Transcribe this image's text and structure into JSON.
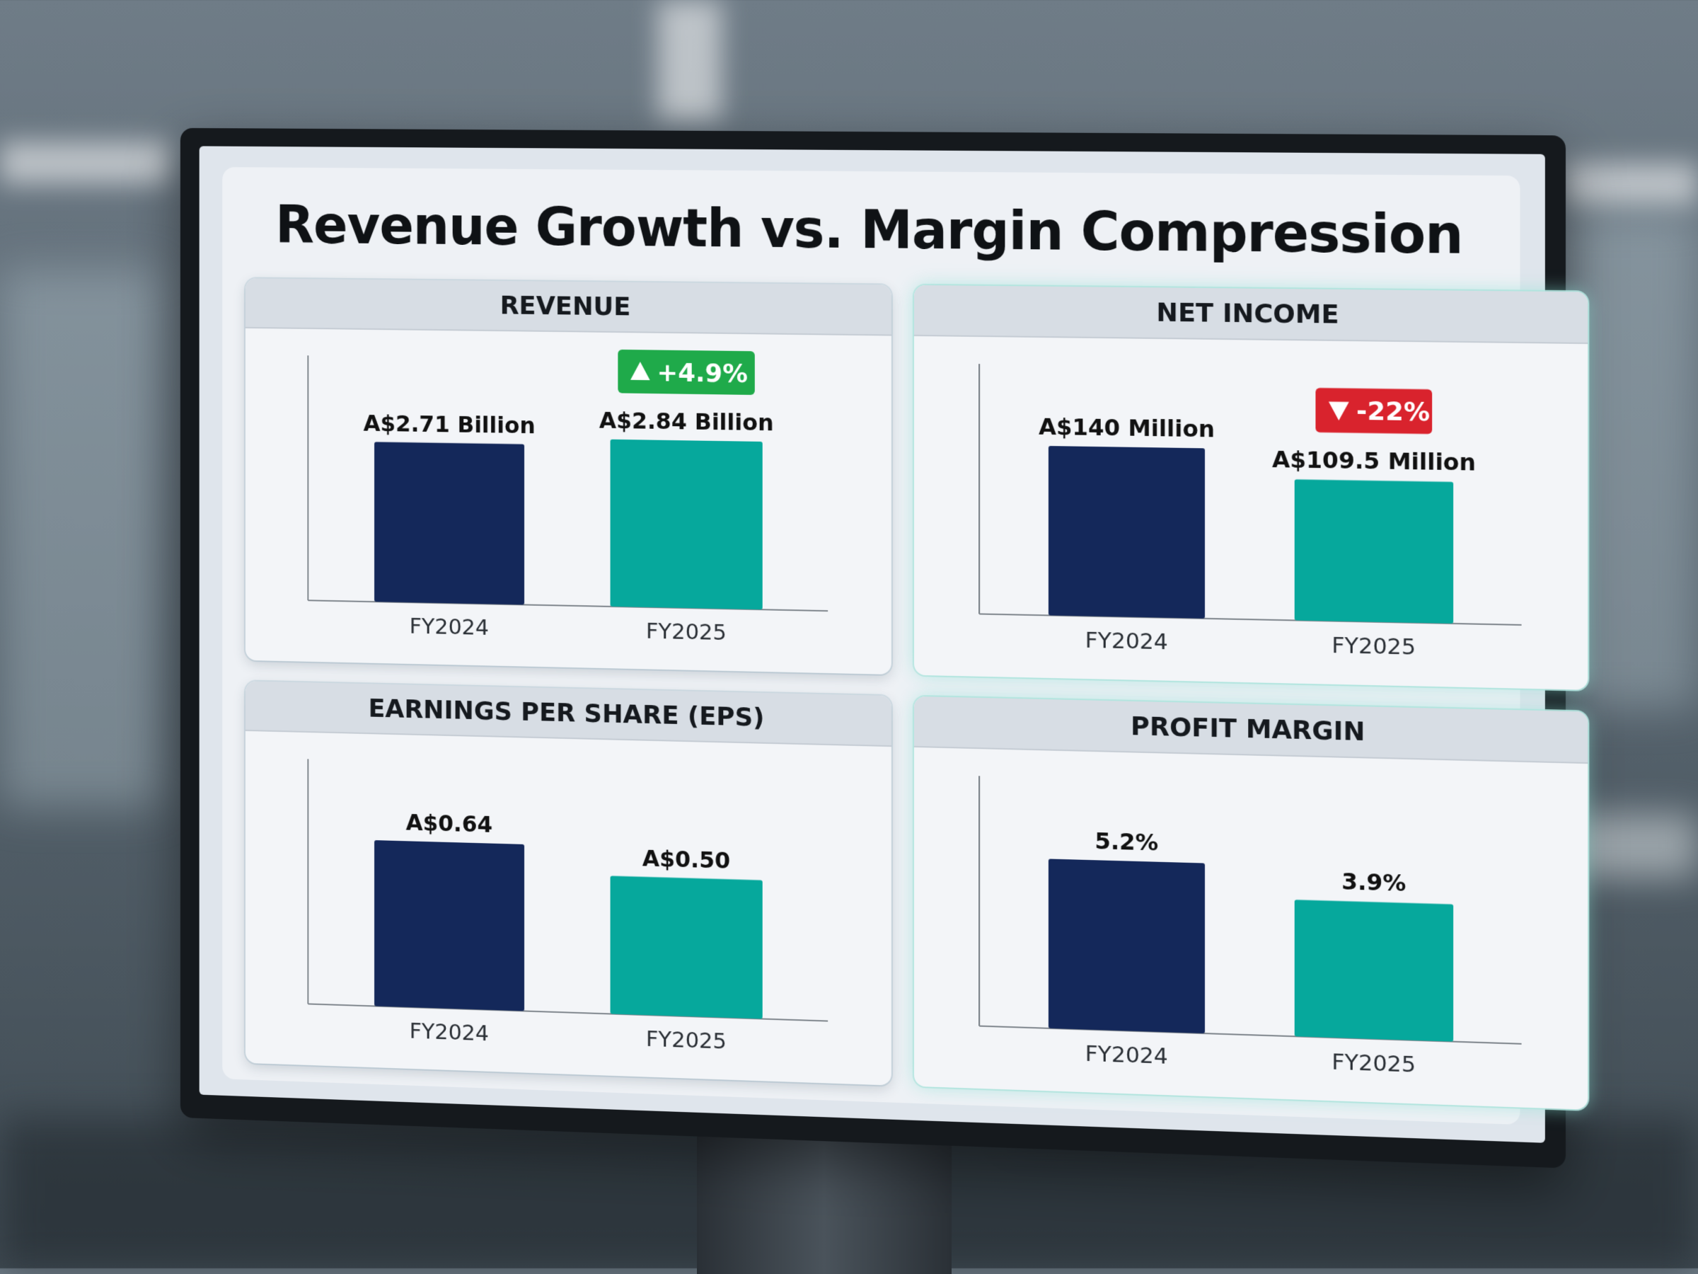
{
  "title": "Revenue Growth vs. Margin Compression",
  "colors": {
    "fy2024": "#14285a",
    "fy2025": "#06a89c",
    "up_badge": "#1faa4a",
    "down_badge": "#d9232d"
  },
  "chart_data": [
    {
      "id": "revenue",
      "type": "bar",
      "title": "REVENUE",
      "categories": [
        "FY2024",
        "FY2025"
      ],
      "values": [
        2.71,
        2.84
      ],
      "value_labels": [
        "A$2.71 Billion",
        "A$2.84 Billion"
      ],
      "change": {
        "direction": "up",
        "text": "+4.9%"
      }
    },
    {
      "id": "net-income",
      "type": "bar",
      "title": "NET INCOME",
      "categories": [
        "FY2024",
        "FY2025"
      ],
      "values": [
        140,
        109.5
      ],
      "value_labels": [
        "A$140 Million",
        "A$109.5 Million"
      ],
      "change": {
        "direction": "down",
        "text": "-22%"
      }
    },
    {
      "id": "eps",
      "type": "bar",
      "title": "EARNINGS PER SHARE (EPS)",
      "categories": [
        "FY2024",
        "FY2025"
      ],
      "values": [
        0.64,
        0.5
      ],
      "value_labels": [
        "A$0.64",
        "A$0.50"
      ]
    },
    {
      "id": "profit-margin",
      "type": "bar",
      "title": "PROFIT MARGIN",
      "categories": [
        "FY2024",
        "FY2025"
      ],
      "values": [
        5.2,
        3.9
      ],
      "value_labels": [
        "5.2%",
        "3.9%"
      ]
    }
  ]
}
